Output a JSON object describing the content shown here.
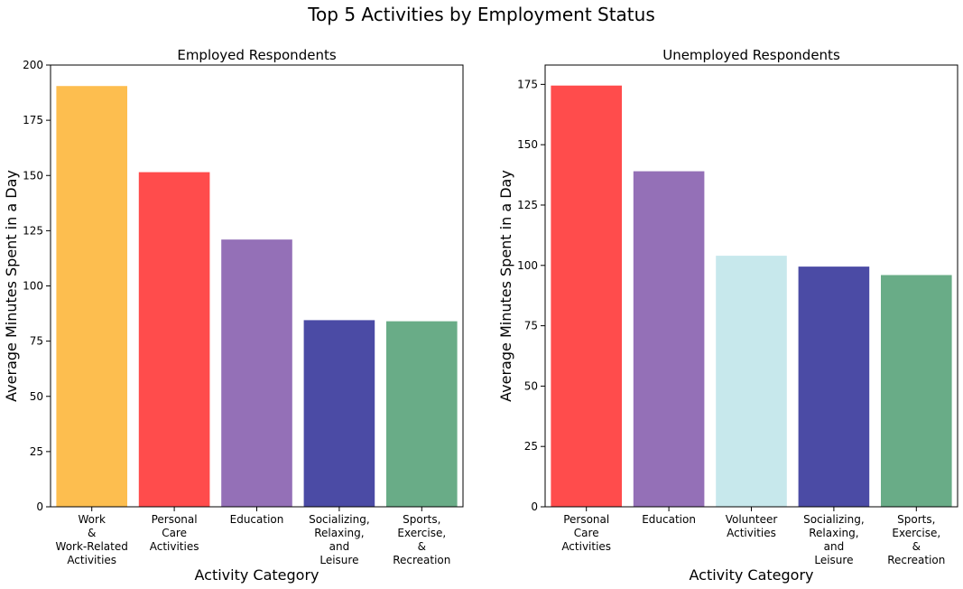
{
  "figure": {
    "title": "Top 5 Activities by Employment Status"
  },
  "chart_data": [
    {
      "type": "bar",
      "title": "Employed Respondents",
      "xlabel": "Activity Category",
      "ylabel": "Average Minutes Spent in a Day",
      "ylim": [
        0,
        200
      ],
      "yticks": [
        0,
        25,
        50,
        75,
        100,
        125,
        150,
        175,
        200
      ],
      "grid": false,
      "categories": [
        [
          "Work",
          "&",
          "Work-Related",
          "Activities"
        ],
        [
          "Personal",
          "Care",
          "Activities"
        ],
        [
          "Education"
        ],
        [
          "Socializing,",
          "Relaxing,",
          "and",
          "Leisure"
        ],
        [
          "Sports,",
          "Exercise,",
          "&",
          "Recreation"
        ]
      ],
      "values": [
        190.5,
        151.5,
        121,
        84.5,
        84
      ],
      "colors": [
        "#fdbe4f",
        "#ff4c4c",
        "#9470b7",
        "#4b4ba5",
        "#69ac87"
      ]
    },
    {
      "type": "bar",
      "title": "Unemployed Respondents",
      "xlabel": "Activity Category",
      "ylabel": "Average Minutes Spent in a Day",
      "ylim": [
        0,
        183
      ],
      "yticks": [
        0,
        25,
        50,
        75,
        100,
        125,
        150,
        175
      ],
      "grid": false,
      "categories": [
        [
          "Personal",
          "Care",
          "Activities"
        ],
        [
          "Education"
        ],
        [
          "Volunteer",
          "Activities"
        ],
        [
          "Socializing,",
          "Relaxing,",
          "and",
          "Leisure"
        ],
        [
          "Sports,",
          "Exercise,",
          "&",
          "Recreation"
        ]
      ],
      "values": [
        174.5,
        139,
        104,
        99.5,
        96
      ],
      "colors": [
        "#ff4c4c",
        "#9470b7",
        "#c7e8ec",
        "#4b4ba5",
        "#69ac87"
      ]
    }
  ]
}
